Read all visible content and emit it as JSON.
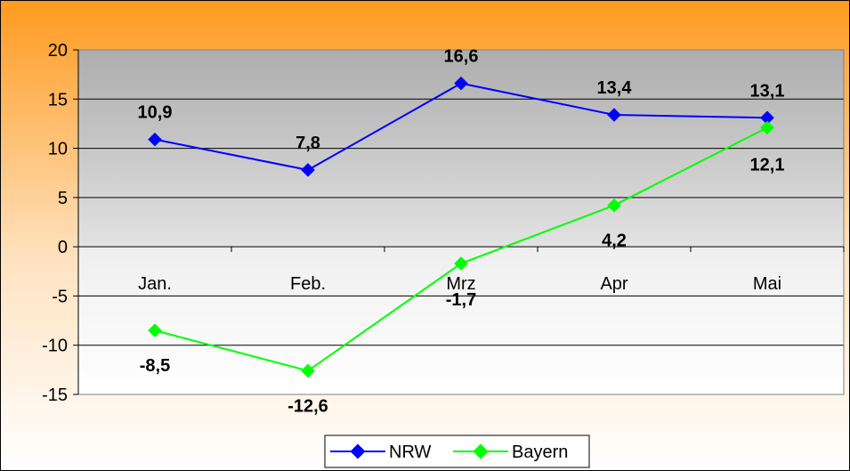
{
  "chart_data": {
    "type": "line",
    "categories": [
      "Jan.",
      "Feb.",
      "Mrz",
      "Apr",
      "Mai"
    ],
    "series": [
      {
        "name": "NRW",
        "values": [
          10.9,
          7.8,
          16.6,
          13.4,
          13.1
        ],
        "labels": [
          "10,9",
          "7,8",
          "16,6",
          "13,4",
          "13,1"
        ],
        "color": "#0000FF"
      },
      {
        "name": "Bayern",
        "values": [
          -8.5,
          -12.6,
          -1.7,
          4.2,
          12.1
        ],
        "labels": [
          "-8,5",
          "-12,6",
          "-1,7",
          "4,2",
          "12,1"
        ],
        "color": "#00FF00"
      }
    ],
    "ylim": [
      -15,
      20
    ],
    "yticks": [
      20,
      15,
      10,
      5,
      0,
      -5,
      -10,
      -15
    ],
    "grid": true,
    "legend": "bottom",
    "title": "",
    "xlabel": "",
    "ylabel": ""
  },
  "colors": {
    "background_top": "#FF9A1F",
    "background_bottom": "#FFFFFF",
    "plot_positive_top": "#B0B0B0",
    "plot_positive_bottom": "#E4E4E4",
    "plot_negative_top": "#F0F0F0",
    "plot_negative_bottom": "#FFFFFF"
  }
}
